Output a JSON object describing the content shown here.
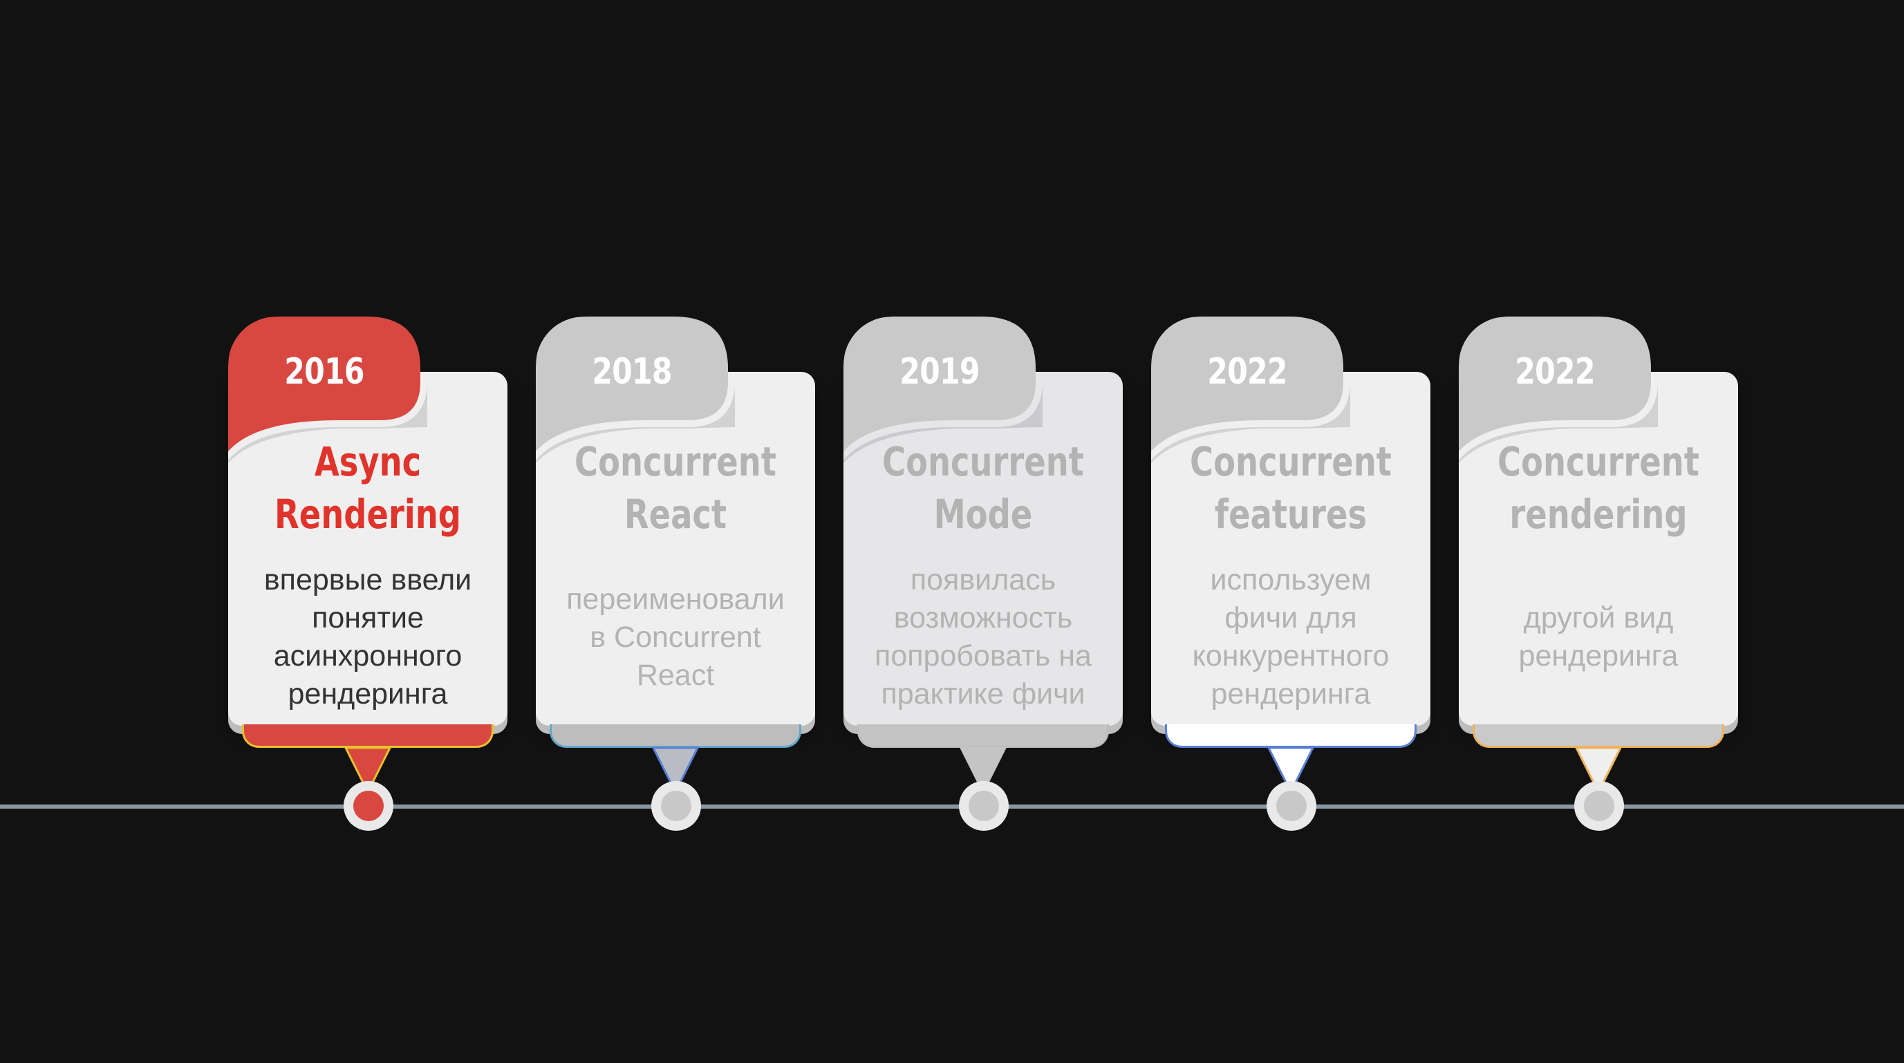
{
  "timeline": {
    "items": [
      {
        "year": "2016",
        "title_lines": [
          "Async",
          "Rendering"
        ],
        "desc_lines": [
          "впервые ввели",
          "понятие",
          "асинхронного",
          "рендеринга"
        ],
        "active": true
      },
      {
        "year": "2018",
        "title_lines": [
          "Concurrent",
          "React"
        ],
        "desc_lines": [
          "переименовали",
          "в Concurrent",
          "React"
        ],
        "active": false
      },
      {
        "year": "2019",
        "title_lines": [
          "Concurrent",
          "Mode"
        ],
        "desc_lines": [
          "появилась",
          "возможность",
          "попробовать на",
          "практике фичи"
        ],
        "active": false
      },
      {
        "year": "2022",
        "title_lines": [
          "Concurrent",
          "features"
        ],
        "desc_lines": [
          "используем",
          "фичи для",
          "конкурентного",
          "рендеринга"
        ],
        "active": false
      },
      {
        "year": "2022",
        "title_lines": [
          "Concurrent",
          "rendering"
        ],
        "desc_lines": [
          "другой вид",
          "рендеринга"
        ],
        "active": false
      }
    ]
  },
  "colors": {
    "background": "#121212",
    "active_accent": "#d94840",
    "active_title": "#e0332b",
    "active_desc": "#333333",
    "inactive_tab": "#c9c9c9",
    "inactive_text": "#b3b3b3",
    "card": "#efefef",
    "axis": "#8a97a2",
    "foot_borders": [
      "#e8c22a",
      "#5fa8c8",
      "#bdbdbd",
      "#5a7fd6",
      "#efb25a"
    ],
    "foot_fills": [
      "#d94840",
      "#bdbdbd",
      "#c4c4c4",
      "#ffffff",
      "#c9c9c9"
    ],
    "pointer_fills": [
      "#d94840",
      "#b9bcc4",
      "#c4c4c4",
      "#ffffff",
      "#efefef"
    ],
    "pointer_borders": [
      "#e8c22a",
      "#5a7fd6",
      "#c4c4c4",
      "#5a7fd6",
      "#efb25a"
    ]
  }
}
